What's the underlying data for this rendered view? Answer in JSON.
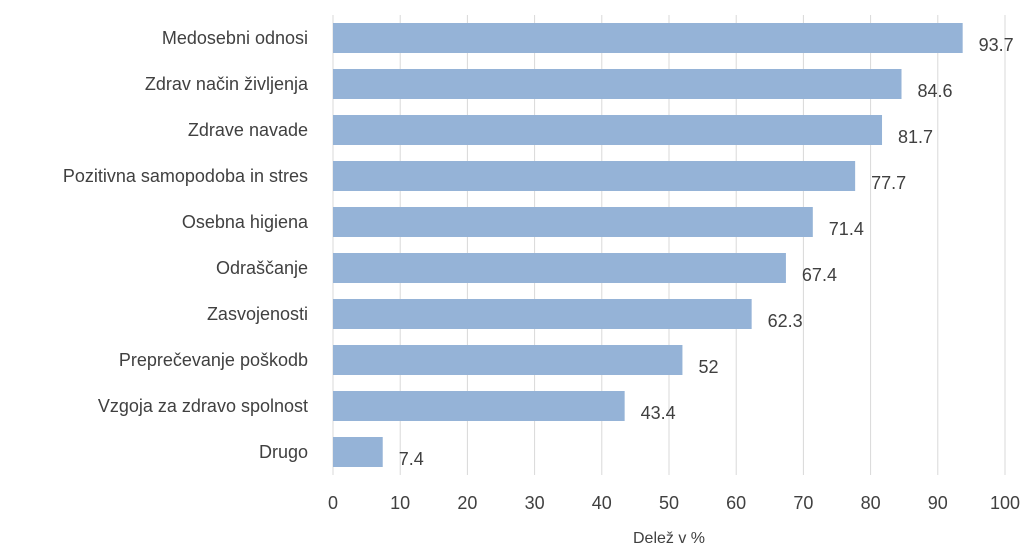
{
  "chart_data": {
    "type": "bar",
    "orientation": "horizontal",
    "categories": [
      "Medosebni odnosi",
      "Zdrav način življenja",
      "Zdrave navade",
      "Pozitivna samopodoba in stres",
      "Osebna higiena",
      "Odraščanje",
      "Zasvojenosti",
      "Preprečevanje poškodb",
      "Vzgoja za zdravo spolnost",
      "Drugo"
    ],
    "values": [
      93.7,
      84.6,
      81.7,
      77.7,
      71.4,
      67.4,
      62.3,
      52,
      43.4,
      7.4
    ],
    "value_labels": [
      "93.7",
      "84.6",
      "81.7",
      "77.7",
      "71.4",
      "67.4",
      "62.3",
      "52",
      "43.4",
      "7.4"
    ],
    "xlabel": "Delež v %",
    "ylabel": "",
    "xlim": [
      0,
      100
    ],
    "xticks": [
      0,
      10,
      20,
      30,
      40,
      50,
      60,
      70,
      80,
      90,
      100
    ],
    "grid": true,
    "legend": "none",
    "colors": {
      "bar": "#95b3d7",
      "grid": "#d9d9d9",
      "text": "#404040"
    }
  }
}
